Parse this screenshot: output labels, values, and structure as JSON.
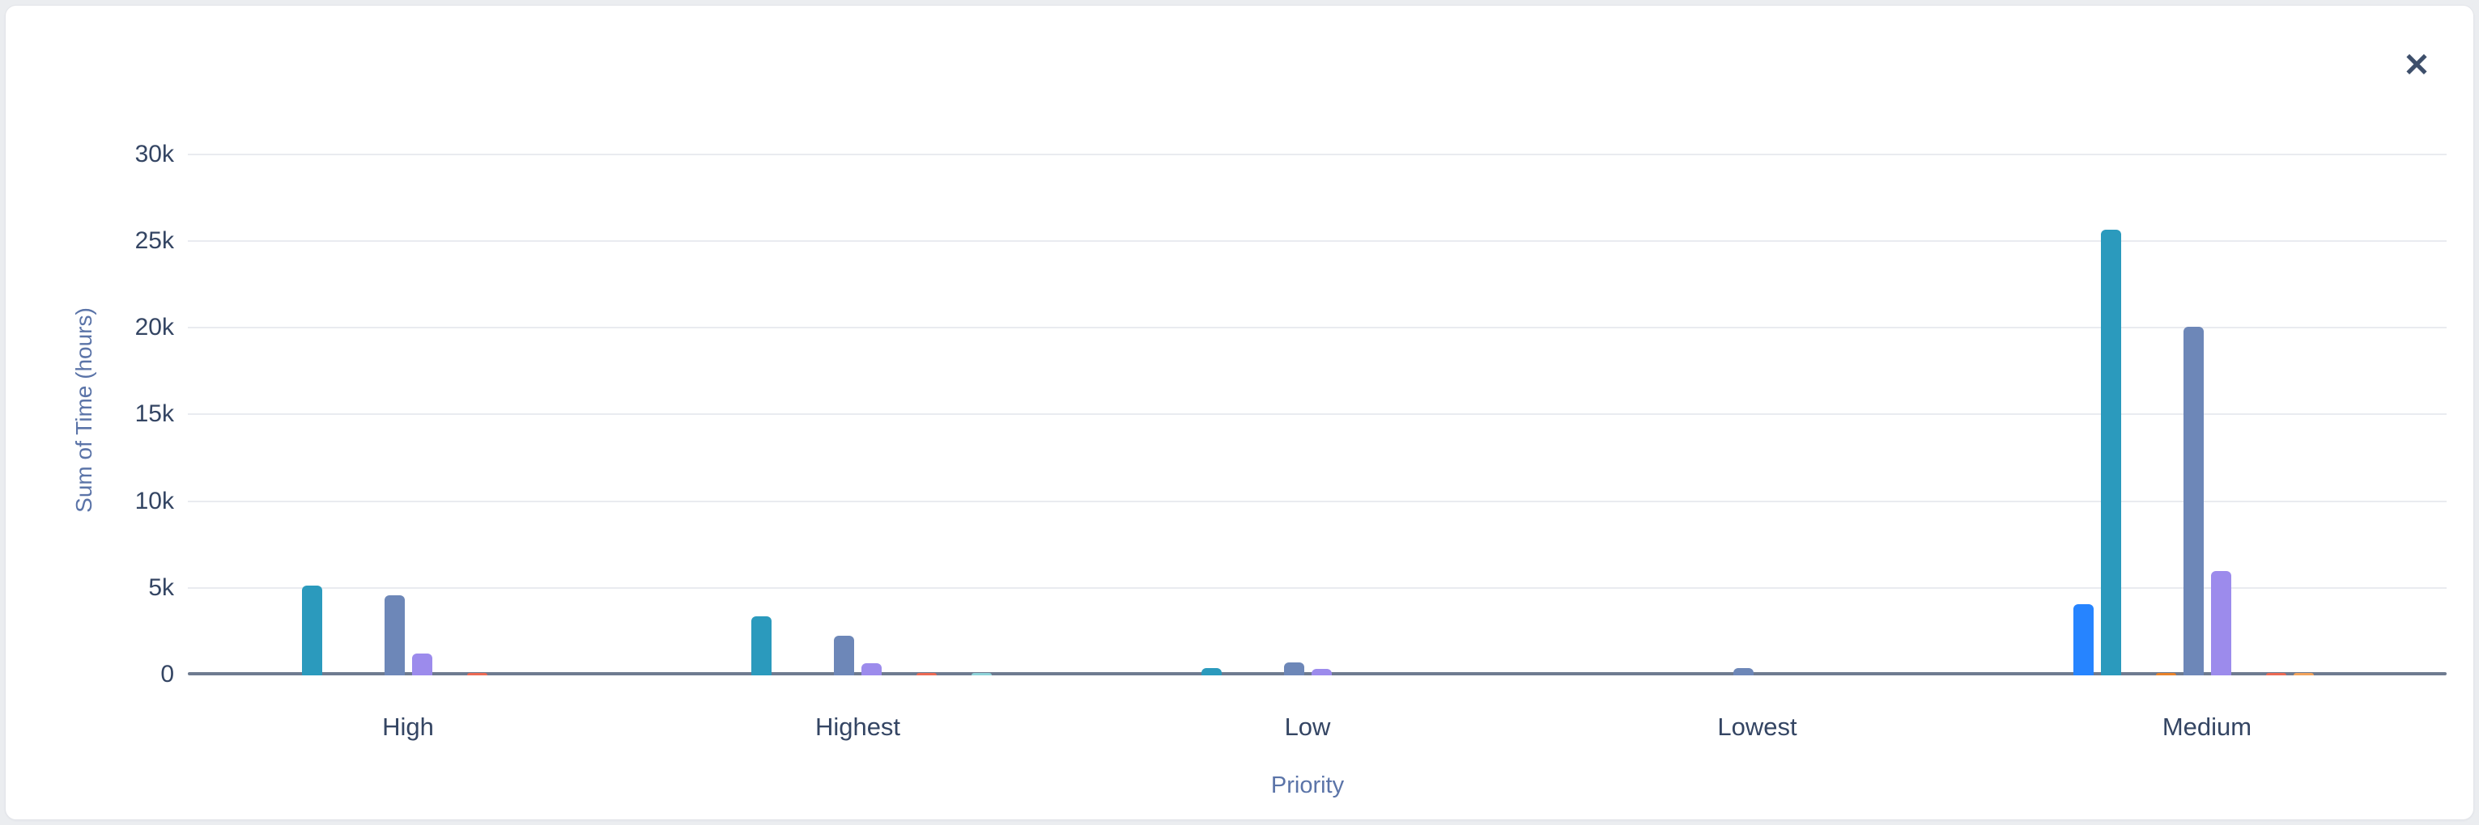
{
  "window": {
    "close_icon": "✕"
  },
  "chart_data": {
    "type": "bar",
    "title": "",
    "xlabel": "Priority",
    "ylabel": "Sum of Time (hours)",
    "unit": "hours",
    "categories": [
      "High",
      "Highest",
      "Low",
      "Lowest",
      "Medium"
    ],
    "y_ticks": [
      "0",
      "5k",
      "10k",
      "15k",
      "20k",
      "25k",
      "30k"
    ],
    "y_tick_values": [
      0,
      5000,
      10000,
      15000,
      20000,
      25000,
      30000
    ],
    "ylim": [
      0,
      30000
    ],
    "grid": "horizontal",
    "legend": "none",
    "slot_count": 10,
    "series": [
      {
        "name": "blue",
        "color": "#2684FF",
        "slot": 0,
        "values": [
          0,
          0,
          0,
          0,
          4100
        ]
      },
      {
        "name": "teal",
        "color": "#2B9ABD",
        "slot": 1,
        "values": [
          5200,
          3400,
          430,
          0,
          25700
        ]
      },
      {
        "name": "orange",
        "color": "#E8822A",
        "slot": 3,
        "values": [
          0,
          0,
          0,
          0,
          150
        ]
      },
      {
        "name": "slate-blue",
        "color": "#6D87B8",
        "slot": 4,
        "values": [
          4600,
          2300,
          750,
          430,
          20100
        ]
      },
      {
        "name": "purple",
        "color": "#9C8BEC",
        "slot": 5,
        "values": [
          1250,
          700,
          390,
          0,
          6000
        ]
      },
      {
        "name": "red",
        "color": "#EC6A54",
        "slot": 7,
        "values": [
          100,
          100,
          0,
          0,
          150
        ]
      },
      {
        "name": "amber",
        "color": "#F2A35C",
        "slot": 8,
        "values": [
          0,
          0,
          0,
          0,
          150
        ]
      },
      {
        "name": "cyan",
        "color": "#8ED3D9",
        "slot": 9,
        "values": [
          0,
          80,
          0,
          0,
          0
        ]
      }
    ]
  }
}
